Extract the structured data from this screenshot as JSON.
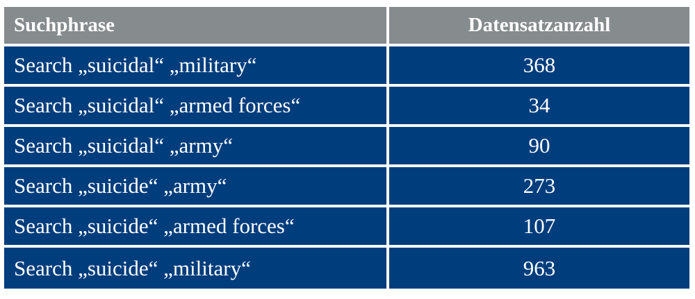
{
  "table": {
    "headers": [
      "Suchphrase",
      "Datensatzanzahl"
    ],
    "rows": [
      {
        "phrase": "Search „suicidal“ „military“",
        "count": "368"
      },
      {
        "phrase": "Search „suicidal“ „armed forces“",
        "count": "34"
      },
      {
        "phrase": "Search „suicidal“ „army“",
        "count": "90"
      },
      {
        "phrase": "Search „suicide“ „army“",
        "count": "273"
      },
      {
        "phrase": "Search „suicide“ „armed forces“",
        "count": "107"
      },
      {
        "phrase": "Search „suicide“ „military“",
        "count": "963"
      }
    ]
  },
  "colors": {
    "header_bg": "#868b8e",
    "row_bg": "#003d7d",
    "text": "#ffffff"
  }
}
